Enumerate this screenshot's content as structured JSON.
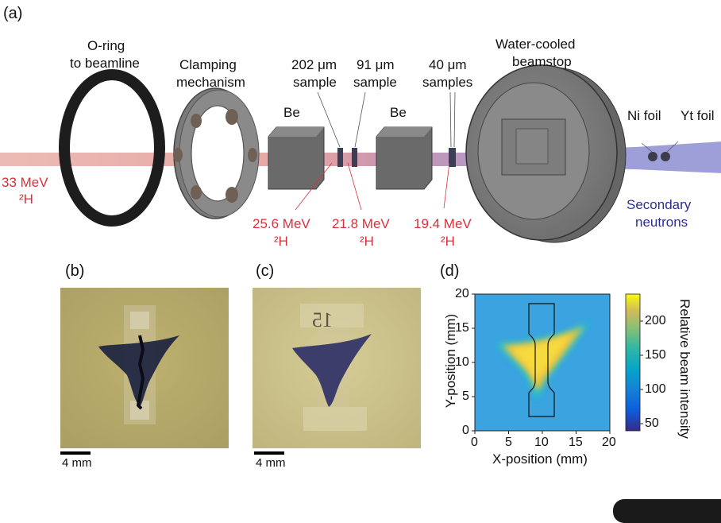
{
  "panel_a": {
    "tag": "(a)",
    "labels": {
      "oring_1": "O-ring",
      "oring_2": "to beamline",
      "clamp_1": "Clamping",
      "clamp_2": "mechanism",
      "be_1": "Be",
      "be_2": "Be",
      "s202_1": "202 μm",
      "s202_2": "sample",
      "s91_1": "91 μm",
      "s91_2": "sample",
      "s40_1": "40 μm",
      "s40_2": "samples",
      "stop_1": "Water-cooled",
      "stop_2": "beamstop",
      "ni": "Ni foil",
      "yt": "Yt foil",
      "sec_1": "Secondary",
      "sec_2": "neutrons"
    },
    "energies": {
      "e33_1": "33 MeV",
      "e33_2": "²H",
      "e256_1": "25.6 MeV",
      "e256_2": "²H",
      "e218_1": "21.8 MeV",
      "e218_2": "²H",
      "e194_1": "19.4 MeV",
      "e194_2": "²H"
    },
    "colors": {
      "beam": "#e8a6a0",
      "neutrons": "#8c8ccf",
      "energy_text": "#d9303b",
      "neutron_text": "#2d2f8e"
    }
  },
  "panel_b": {
    "tag": "(b)",
    "scale": "4 mm"
  },
  "panel_c": {
    "tag": "(c)",
    "scale": "4 mm",
    "mark": "15"
  },
  "panel_d": {
    "tag": "(d)",
    "xlabel": "X-position (mm)",
    "ylabel": "Y-position (mm)",
    "colorbar_label": "Relative beam intensity",
    "x_ticks": [
      "0",
      "5",
      "10",
      "15",
      "20"
    ],
    "y_ticks": [
      "0",
      "5",
      "10",
      "15",
      "20"
    ],
    "cbar_ticks": [
      "50",
      "100",
      "150",
      "200"
    ]
  },
  "chart_data": {
    "type": "heatmap",
    "xlabel": "X-position (mm)",
    "ylabel": "Y-position (mm)",
    "xlim": [
      0,
      20
    ],
    "ylim": [
      0,
      20
    ],
    "colorbar": {
      "label": "Relative beam intensity",
      "range": [
        40,
        240
      ],
      "ticks": [
        50,
        100,
        150,
        200
      ]
    },
    "background_value": 120,
    "hotspot_peak_value": 240,
    "colormap": "parula"
  }
}
